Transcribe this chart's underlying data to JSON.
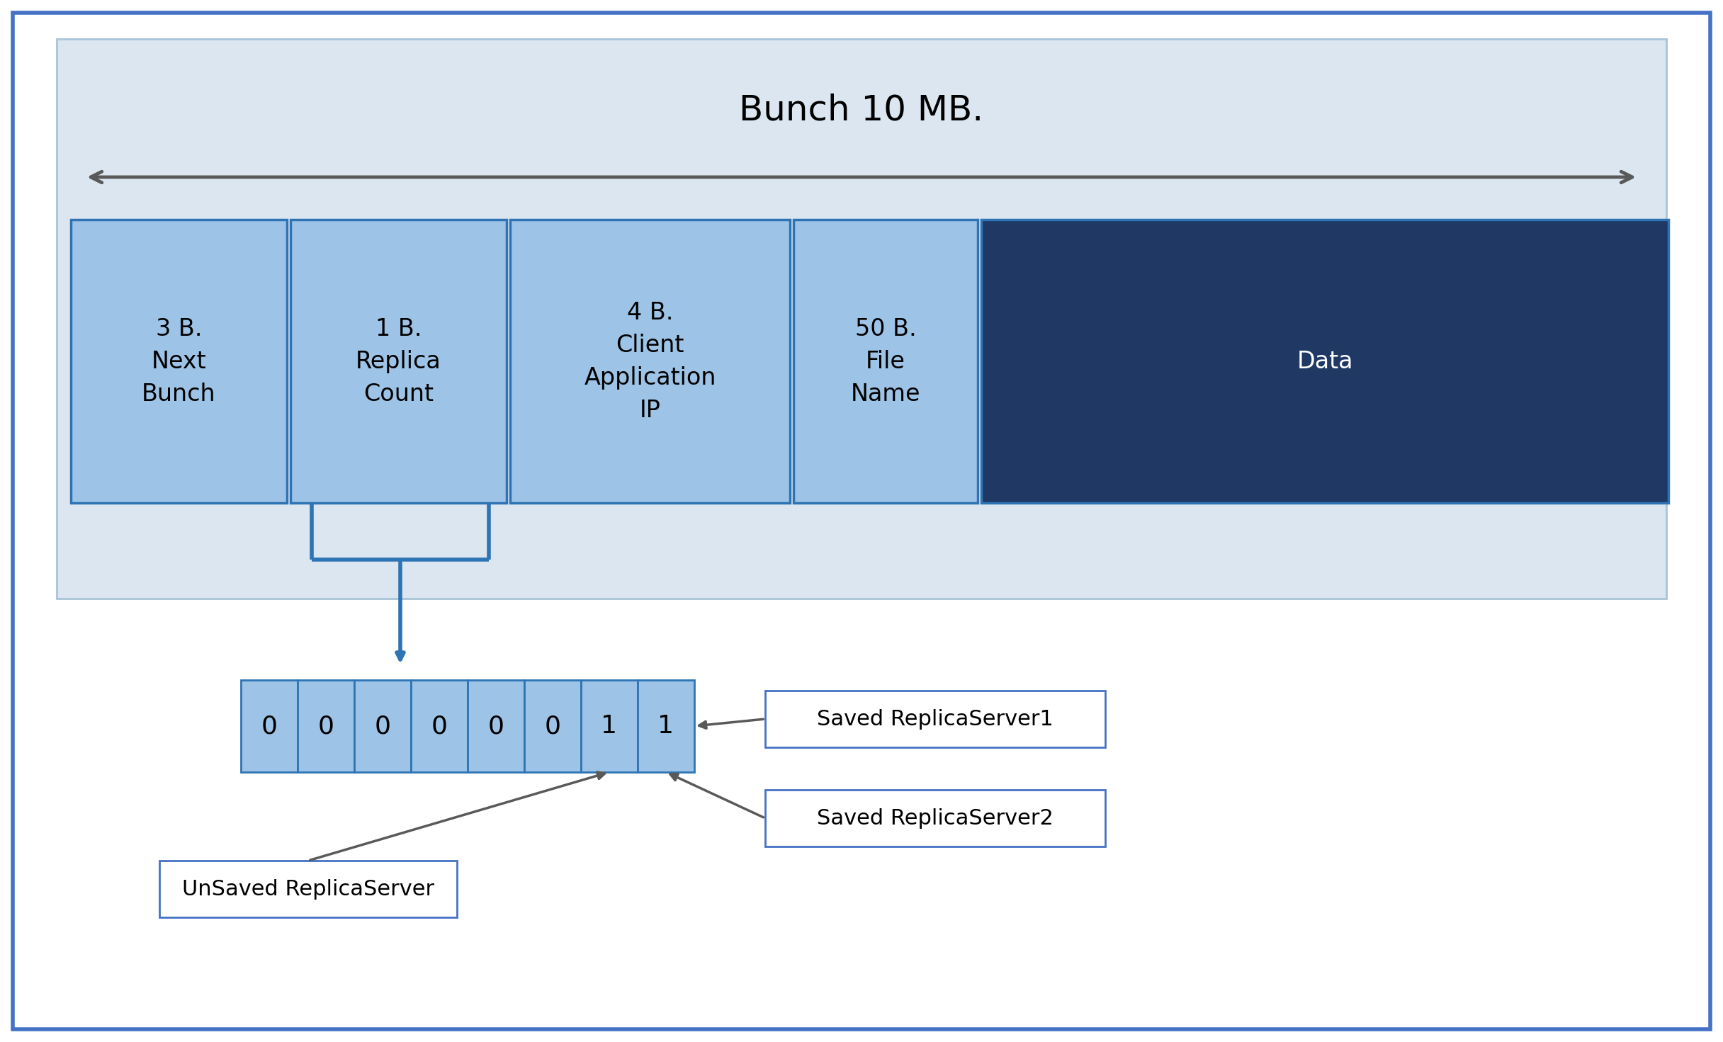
{
  "bg_color": "#ffffff",
  "outer_border_color": "#4472c4",
  "outer_border_lw": 4,
  "main_bg": "#dce6f1",
  "main_bg_border": "#a8c4d8",
  "title": "Bunch 10 MB.",
  "title_fontsize": 36,
  "title_color": "#000000",
  "arrow_color": "#595959",
  "arrow_lw": 3.5,
  "cell_light": "#9dc3e6",
  "cell_border": "#2e74b5",
  "cell_dark": "#1f3864",
  "cell_texts": [
    "3 B.\nNext\nBunch",
    "1 B.\nReplica\nCount",
    "4 B.\nClient\nApplication\nIP",
    "50 B.\nFile\nName",
    "Data"
  ],
  "cell_colors": [
    "#9dc3e6",
    "#9dc3e6",
    "#9dc3e6",
    "#9dc3e6",
    "#1f3864"
  ],
  "cell_text_colors": [
    "#000000",
    "#000000",
    "#000000",
    "#000000",
    "#ffffff"
  ],
  "cell_fontsize": 24,
  "bits": [
    "0",
    "0",
    "0",
    "0",
    "0",
    "0",
    "1",
    "1"
  ],
  "bit_cell_color": "#9dc3e6",
  "bit_cell_border": "#2e74b5",
  "label_saved1": "Saved ReplicaServer1",
  "label_saved2": "Saved ReplicaServer2",
  "label_unsaved": "UnSaved ReplicaServer",
  "label_fontsize": 22,
  "box_color": "#ffffff",
  "box_border": "#4472c4",
  "bracket_color": "#2e74b5"
}
